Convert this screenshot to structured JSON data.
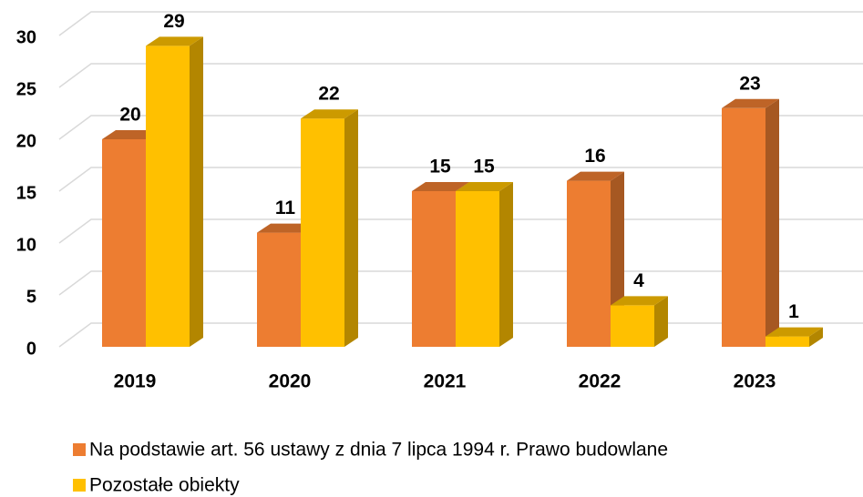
{
  "chart_data": {
    "type": "bar3d",
    "categories": [
      "2019",
      "2020",
      "2021",
      "2022",
      "2023"
    ],
    "series": [
      {
        "name": "Na podstawie art. 56 ustawy z dnia 7 lipca 1994 r. Prawo budowlane",
        "color": "#ED7D31",
        "values": [
          20,
          11,
          15,
          16,
          23
        ]
      },
      {
        "name": "Pozostałe obiekty",
        "color": "#FFC000",
        "values": [
          29,
          22,
          15,
          4,
          1
        ]
      }
    ],
    "ylim": [
      0,
      30
    ],
    "yticks": [
      0,
      5,
      10,
      15,
      20,
      25,
      30
    ],
    "grid": true,
    "legend": "bottom"
  }
}
